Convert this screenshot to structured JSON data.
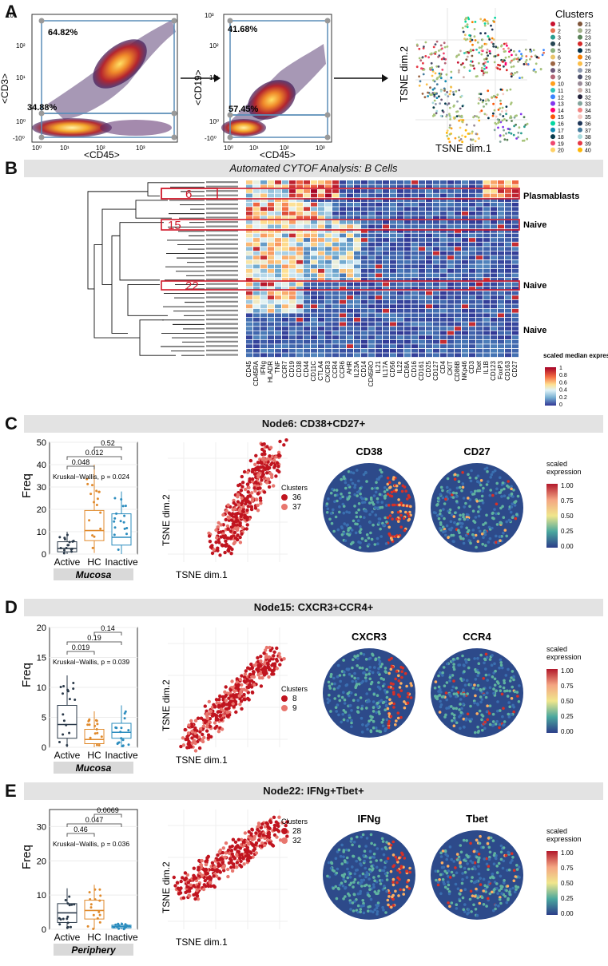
{
  "panelA": {
    "letter": "A",
    "plot1": {
      "xlabel": "<CD45>",
      "ylabel": "<CD3>",
      "gate_upper": "64.82%",
      "gate_lower": "34.88%",
      "xticks": [
        "10⁰",
        "10¹",
        "10²",
        "10³"
      ],
      "yticks": [
        "10³",
        "10²",
        "10¹",
        "10⁰",
        "-10⁰"
      ]
    },
    "plot2": {
      "xlabel": "<CD45>",
      "ylabel": "<CD19>",
      "gate_upper": "41.68%",
      "gate_lower": "57.45%",
      "xticks": [
        "10⁰",
        "10¹",
        "10²",
        "10³"
      ],
      "yticks": [
        "10³",
        "10²",
        "10¹",
        "10⁰",
        "-10⁰"
      ]
    },
    "tsne": {
      "xlabel": "TSNE dim.1",
      "ylabel": "TSNE dim.2"
    },
    "clusters_title": "Clusters",
    "clusters": [
      "1",
      "2",
      "3",
      "4",
      "5",
      "6",
      "7",
      "8",
      "9",
      "10",
      "11",
      "12",
      "13",
      "14",
      "15",
      "16",
      "17",
      "18",
      "19",
      "20",
      "21",
      "22",
      "23",
      "24",
      "25",
      "26",
      "27",
      "28",
      "29",
      "30",
      "31",
      "32",
      "33",
      "34",
      "35",
      "36",
      "37",
      "38",
      "39",
      "40"
    ],
    "cluster_colors": [
      "#c8102e",
      "#e76f51",
      "#2a9d8f",
      "#264653",
      "#8ab17d",
      "#e9c46a",
      "#9c6644",
      "#6d597a",
      "#b56576",
      "#ff9f1c",
      "#2ec4b6",
      "#3a86ff",
      "#8338ec",
      "#ff006e",
      "#fb5607",
      "#06d6a0",
      "#118ab2",
      "#073b4c",
      "#ef476f",
      "#ffd166",
      "#7f5539",
      "#a3b18a",
      "#588157",
      "#d62828",
      "#003049",
      "#f77f00",
      "#fcbf49",
      "#8d99ae",
      "#4a4e69",
      "#9a8c98",
      "#c9ada7",
      "#22223b",
      "#84a59d",
      "#f28482",
      "#f5cac3",
      "#1d3557",
      "#457b9d",
      "#a8dadc",
      "#e63946",
      "#ffb703"
    ]
  },
  "panelB": {
    "letter": "B",
    "title": "Automated CYTOF Analysis: B Cells",
    "node_labels": [
      "6",
      "15",
      "22"
    ],
    "annotations": [
      "Plasmablasts",
      "Naive",
      "Naive",
      "Naive"
    ],
    "markers": [
      "CD45",
      "CD45RA",
      "IFNg",
      "HLADR",
      "TNF",
      "CCR7",
      "CD19",
      "CD38",
      "CD44",
      "CD11C",
      "CTLA4",
      "CXCR3",
      "CCR4",
      "CCR6",
      "AHR",
      "IL23A",
      "CD14",
      "CD45RO",
      "IL21",
      "IL17A",
      "CD56",
      "IL22",
      "CD8A",
      "CD16",
      "CD161",
      "CD25",
      "CD127",
      "CD4",
      "CKIT",
      "CD86B",
      "NKp46",
      "CD3",
      "Tbet",
      "IL1B",
      "CD123",
      "FoxP3",
      "CD163",
      "CD27"
    ],
    "legend_title": "scaled median\nexpression",
    "legend_ticks": [
      "1",
      "0.8",
      "0.6",
      "0.4",
      "0.2",
      "0"
    ]
  },
  "panelC": {
    "letter": "C",
    "title": "Node6: CD38+CD27+",
    "ylabel": "Freq",
    "yticks": [
      "50",
      "40",
      "30",
      "20",
      "10",
      "0"
    ],
    "ymax": 50,
    "groups": [
      "Active",
      "HC",
      "Inactive"
    ],
    "pvals": [
      "0.52",
      "0.012",
      "0.048"
    ],
    "kruskal": "Kruskal−Wallis, p = 0.024",
    "tissue": "Mucosa",
    "clusters_title": "Clusters",
    "clusters": [
      "36",
      "37"
    ],
    "tsne_x": "TSNE dim.1",
    "tsne_y": "TSNE dim.2",
    "markerA": "CD38",
    "markerB": "CD27",
    "scale_title": "scaled\nexpression",
    "scale_ticks": [
      "1.00",
      "0.75",
      "0.50",
      "0.25",
      "0.00"
    ],
    "boxes": [
      {
        "q1": 1,
        "median": 2.5,
        "q3": 5.5,
        "lo": 0,
        "hi": 10
      },
      {
        "q1": 6,
        "median": 10.5,
        "q3": 19.5,
        "lo": 0.5,
        "hi": 40
      },
      {
        "q1": 4,
        "median": 7.5,
        "q3": 18,
        "lo": 0,
        "hi": 28
      }
    ]
  },
  "panelD": {
    "letter": "D",
    "title": "Node15: CXCR3+CCR4+",
    "ylabel": "Freq",
    "yticks": [
      "20",
      "15",
      "10",
      "5",
      "0"
    ],
    "ymax": 20,
    "groups": [
      "Active",
      "HC",
      "Inactive"
    ],
    "pvals": [
      "0.14",
      "0.19",
      "0.019"
    ],
    "kruskal": "Kruskal−Wallis, p = 0.039",
    "tissue": "Mucosa",
    "clusters_title": "Clusters",
    "clusters": [
      "8",
      "9"
    ],
    "tsne_x": "TSNE dim.1",
    "tsne_y": "TSNE dim.2",
    "markerA": "CXCR3",
    "markerB": "CCR4",
    "scale_title": "scaled\nexpression",
    "scale_ticks": [
      "1.00",
      "0.75",
      "0.50",
      "0.25",
      "0.00"
    ],
    "boxes": [
      {
        "q1": 1.5,
        "median": 3.8,
        "q3": 7,
        "lo": 0,
        "hi": 12
      },
      {
        "q1": 0.6,
        "median": 1.3,
        "q3": 3,
        "lo": 0,
        "hi": 6
      },
      {
        "q1": 1.5,
        "median": 2.5,
        "q3": 4,
        "lo": 0,
        "hi": 7
      }
    ]
  },
  "panelE": {
    "letter": "E",
    "title": "Node22: IFNg+Tbet+",
    "ylabel": "Freq",
    "yticks": [
      "30",
      "20",
      "10",
      "0"
    ],
    "ymax": 35,
    "groups": [
      "Active",
      "HC",
      "Inactive"
    ],
    "pvals": [
      "0.0069",
      "0.047",
      "0.46"
    ],
    "kruskal": "Kruskal−Wallis, p = 0.036",
    "tissue": "Periphery",
    "clusters_title": "Clusters",
    "clusters": [
      "28",
      "32"
    ],
    "tsne_x": "TSNE dim.1",
    "tsne_y": "TSNE dim.2",
    "markerA": "IFNg",
    "markerB": "Tbet",
    "scale_title": "scaled\nexpression",
    "scale_ticks": [
      "1.00",
      "0.75",
      "0.50",
      "0.25",
      "0.00"
    ],
    "boxes": [
      {
        "q1": 2,
        "median": 4.8,
        "q3": 7.5,
        "lo": 0,
        "hi": 12
      },
      {
        "q1": 3,
        "median": 5.5,
        "q3": 8.5,
        "lo": 0,
        "hi": 13
      },
      {
        "q1": 0.4,
        "median": 0.8,
        "q3": 1.2,
        "lo": 0,
        "hi": 2
      }
    ]
  },
  "colors": {
    "active": "#2b3a4a",
    "hc": "#e08a2c",
    "inactive": "#2b8cbe",
    "dark_red": "#c0141f",
    "light_red": "#e8766e",
    "gate": "#5b8db8",
    "box_red": "#d0182a"
  }
}
